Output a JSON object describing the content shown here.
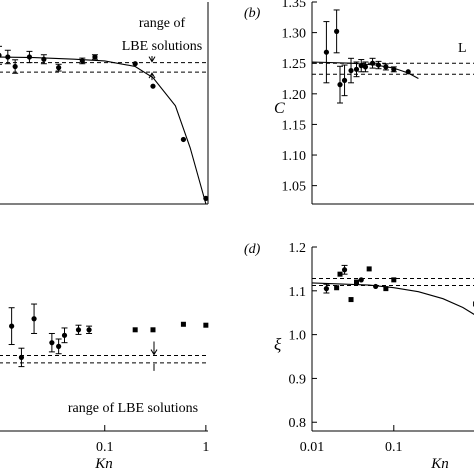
{
  "chart_data": [
    {
      "panel": "a",
      "type": "scatter",
      "xscale": "log",
      "xlim": [
        0.009,
        1.05
      ],
      "ylim": [
        1.0,
        1.36
      ],
      "xticks": [],
      "yticks": [],
      "annotation": {
        "line1": "range of",
        "line2": "LBE solutions"
      },
      "band": [
        1.235,
        1.252
      ],
      "points": [
        {
          "x": 0.009,
          "y": 1.265,
          "err": 0.016,
          "m": "circle"
        },
        {
          "x": 0.011,
          "y": 1.262,
          "err": 0.012,
          "m": "circle"
        },
        {
          "x": 0.013,
          "y": 1.245,
          "err": 0.012,
          "m": "circle"
        },
        {
          "x": 0.018,
          "y": 1.262,
          "err": 0.01,
          "m": "circle"
        },
        {
          "x": 0.025,
          "y": 1.258,
          "err": 0.008,
          "m": "circle"
        },
        {
          "x": 0.035,
          "y": 1.243,
          "err": 0.006,
          "m": "circle"
        },
        {
          "x": 0.06,
          "y": 1.255,
          "err": 0.005,
          "m": "circle"
        },
        {
          "x": 0.08,
          "y": 1.262,
          "err": 0.004,
          "m": "circle"
        },
        {
          "x": 0.2,
          "y": 1.25,
          "err": 0,
          "m": "circle"
        },
        {
          "x": 0.3,
          "y": 1.21,
          "err": 0,
          "m": "circle"
        },
        {
          "x": 0.6,
          "y": 1.115,
          "err": 0,
          "m": "circle"
        },
        {
          "x": 1.0,
          "y": 1.01,
          "err": 0,
          "m": "circle"
        }
      ],
      "curve": {
        "x": [
          0.009,
          0.02,
          0.05,
          0.1,
          0.2,
          0.3,
          0.5,
          0.7,
          1.0
        ],
        "y": [
          1.262,
          1.261,
          1.258,
          1.255,
          1.245,
          1.225,
          1.175,
          1.1,
          1.0
        ]
      }
    },
    {
      "panel": "b",
      "type": "scatter",
      "xscale": "log",
      "xlim": [
        0.01,
        1.5
      ],
      "ylim": [
        1.02,
        1.35
      ],
      "ylabel": "C",
      "legend_fragment": "L",
      "xticks": [],
      "yticks": [
        {
          "v": 1.35,
          "label": "1.35"
        },
        {
          "v": 1.3,
          "label": "1.30"
        },
        {
          "v": 1.25,
          "label": "1.25"
        },
        {
          "v": 1.2,
          "label": "1.20"
        },
        {
          "v": 1.15,
          "label": "1.15"
        },
        {
          "v": 1.1,
          "label": "1.10"
        },
        {
          "v": 1.05,
          "label": "1.05"
        }
      ],
      "band": [
        1.232,
        1.25
      ],
      "points": [
        {
          "x": 0.015,
          "y": 1.268,
          "err": 0.05,
          "m": "circle"
        },
        {
          "x": 0.02,
          "y": 1.302,
          "err": 0.035,
          "m": "circle"
        },
        {
          "x": 0.022,
          "y": 1.215,
          "err": 0.03,
          "m": "circle"
        },
        {
          "x": 0.025,
          "y": 1.222,
          "err": 0.025,
          "m": "circle"
        },
        {
          "x": 0.03,
          "y": 1.238,
          "err": 0.02,
          "m": "circle"
        },
        {
          "x": 0.035,
          "y": 1.24,
          "err": 0.012,
          "m": "circle"
        },
        {
          "x": 0.04,
          "y": 1.246,
          "err": 0.01,
          "m": "circle"
        },
        {
          "x": 0.045,
          "y": 1.244,
          "err": 0.008,
          "m": "circle"
        },
        {
          "x": 0.055,
          "y": 1.25,
          "err": 0.008,
          "m": "circle"
        },
        {
          "x": 0.065,
          "y": 1.247,
          "err": 0.006,
          "m": "circle"
        },
        {
          "x": 0.08,
          "y": 1.244,
          "err": 0.005,
          "m": "circle"
        },
        {
          "x": 0.1,
          "y": 1.24,
          "err": 0.004,
          "m": "circle"
        },
        {
          "x": 0.15,
          "y": 1.236,
          "err": 0,
          "m": "circle"
        }
      ],
      "curve": {
        "x": [
          0.01,
          0.03,
          0.06,
          0.1,
          0.15,
          0.2
        ],
        "y": [
          1.252,
          1.25,
          1.247,
          1.242,
          1.234,
          1.225
        ]
      }
    },
    {
      "panel": "c",
      "type": "scatter",
      "xscale": "log",
      "xlim": [
        0.009,
        1.05
      ],
      "ylim": [
        0.0,
        1.0
      ],
      "xlabel": "Kn",
      "xticks": [
        {
          "v": 0.1,
          "label": "0.1"
        },
        {
          "v": 1.0,
          "label": "1"
        }
      ],
      "yticks": [],
      "annotation": {
        "line1": "range of LBE solutions"
      },
      "band": [
        0.41,
        0.37
      ],
      "points": [
        {
          "x": 0.012,
          "y": 0.57,
          "err": 0.1,
          "m": "circle"
        },
        {
          "x": 0.015,
          "y": 0.4,
          "err": 0.05,
          "m": "circle"
        },
        {
          "x": 0.02,
          "y": 0.61,
          "err": 0.08,
          "m": "circle"
        },
        {
          "x": 0.03,
          "y": 0.48,
          "err": 0.05,
          "m": "circle"
        },
        {
          "x": 0.035,
          "y": 0.46,
          "err": 0.04,
          "m": "circle"
        },
        {
          "x": 0.04,
          "y": 0.52,
          "err": 0.04,
          "m": "circle"
        },
        {
          "x": 0.055,
          "y": 0.55,
          "err": 0.025,
          "m": "circle"
        },
        {
          "x": 0.07,
          "y": 0.55,
          "err": 0.02,
          "m": "circle"
        },
        {
          "x": 0.2,
          "y": 0.55,
          "err": 0,
          "m": "square"
        },
        {
          "x": 0.3,
          "y": 0.55,
          "err": 0,
          "m": "square"
        },
        {
          "x": 0.6,
          "y": 0.58,
          "err": 0,
          "m": "square"
        },
        {
          "x": 1.0,
          "y": 0.575,
          "err": 0,
          "m": "square"
        }
      ]
    },
    {
      "panel": "d",
      "type": "scatter",
      "xscale": "log",
      "xlim": [
        0.01,
        1.5
      ],
      "ylim": [
        0.78,
        1.2
      ],
      "xlabel": "Kn",
      "ylabel": "ξ",
      "xticks": [
        {
          "v": 0.01,
          "label": "0.01"
        },
        {
          "v": 0.1,
          "label": "0.1"
        }
      ],
      "yticks": [
        {
          "v": 1.2,
          "label": "1.2"
        },
        {
          "v": 1.1,
          "label": "1.1"
        },
        {
          "v": 1.0,
          "label": "1.0"
        },
        {
          "v": 0.9,
          "label": "0.9"
        },
        {
          "v": 0.8,
          "label": "0.8"
        }
      ],
      "band": [
        1.128,
        1.112
      ],
      "points": [
        {
          "x": 0.015,
          "y": 1.105,
          "err": 0.01,
          "m": "circle"
        },
        {
          "x": 0.02,
          "y": 1.107,
          "err": 0,
          "m": "square"
        },
        {
          "x": 0.022,
          "y": 1.138,
          "err": 0,
          "m": "square"
        },
        {
          "x": 0.025,
          "y": 1.148,
          "err": 0.01,
          "m": "circle"
        },
        {
          "x": 0.03,
          "y": 1.08,
          "err": 0,
          "m": "square"
        },
        {
          "x": 0.035,
          "y": 1.12,
          "err": 0,
          "m": "square"
        },
        {
          "x": 0.04,
          "y": 1.125,
          "err": 0,
          "m": "circle"
        },
        {
          "x": 0.05,
          "y": 1.15,
          "err": 0,
          "m": "square"
        },
        {
          "x": 0.06,
          "y": 1.11,
          "err": 0,
          "m": "circle"
        },
        {
          "x": 0.08,
          "y": 1.105,
          "err": 0,
          "m": "square"
        },
        {
          "x": 0.1,
          "y": 1.125,
          "err": 0,
          "m": "square"
        },
        {
          "x": 1.0,
          "y": 1.07,
          "err": 0,
          "m": "square"
        }
      ],
      "curve": {
        "x": [
          0.01,
          0.05,
          0.1,
          0.2,
          0.4,
          0.7,
          1.2
        ],
        "y": [
          1.118,
          1.113,
          1.107,
          1.098,
          1.082,
          1.062,
          1.035
        ]
      }
    }
  ],
  "labels": {
    "panel_b": "(b)",
    "panel_d": "(d)"
  }
}
